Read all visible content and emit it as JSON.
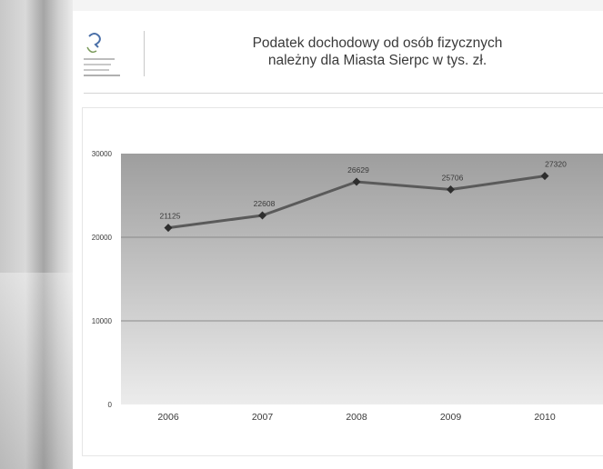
{
  "title": {
    "line1": "Podatek dochodowy od osób fizycznych",
    "line2": "należny dla Miasta Sierpc w tys. zł."
  },
  "colors": {
    "plot_top": "#9e9e9e",
    "plot_bottom": "#ececec",
    "line": "#5a5a5a",
    "marker": "#2e2e2e"
  },
  "chart_data": {
    "type": "line",
    "categories": [
      "2006",
      "2007",
      "2008",
      "2009",
      "2010"
    ],
    "series": [
      {
        "values": [
          21125,
          22608,
          26629,
          25706,
          27320
        ]
      }
    ],
    "data_labels": [
      "21125",
      "22608",
      "26629",
      "25706",
      "27320"
    ],
    "y_ticks": [
      0,
      10000,
      20000,
      30000
    ],
    "ylim": [
      0,
      30000
    ],
    "grid": true,
    "legend": "none"
  }
}
